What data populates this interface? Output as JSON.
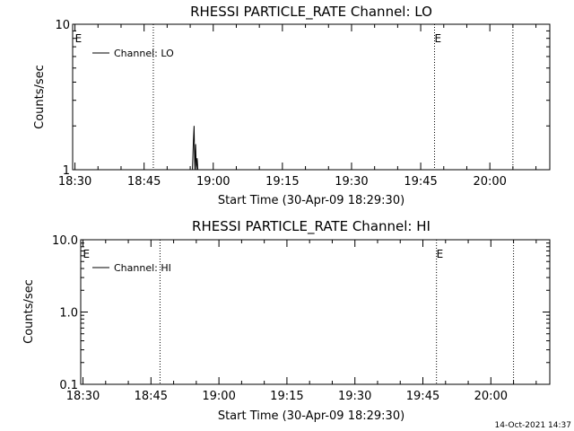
{
  "chart_data": [
    {
      "type": "line",
      "title": "RHESSI PARTICLE_RATE Channel: LO",
      "xlabel": "Start Time (30-Apr-09 18:29:30)",
      "ylabel": "Counts/sec",
      "y_scale": "log",
      "ylim": [
        1,
        10
      ],
      "y_ticks": [
        1,
        10
      ],
      "y_tick_labels": [
        "1",
        "10"
      ],
      "x_tick_labels": [
        "18:30",
        "18:45",
        "19:00",
        "19:15",
        "19:30",
        "19:45",
        "20:00"
      ],
      "series": [
        {
          "name": "Channel: LO",
          "x": [
            "18:55:30",
            "18:55:40",
            "18:55:50",
            "18:56:00",
            "18:56:10",
            "18:56:20",
            "18:56:30",
            "18:56:40"
          ],
          "y": [
            1,
            1.5,
            2.0,
            1.0,
            1.5,
            1.0,
            1.2,
            1.0
          ]
        }
      ],
      "vlines": [
        "18:47",
        "19:48",
        "20:05"
      ],
      "flags": [
        {
          "x": "18:30",
          "label": "E"
        },
        {
          "x": "19:48",
          "label": "E"
        }
      ],
      "legend_position": "top-left",
      "grid": false
    },
    {
      "type": "line",
      "title": "RHESSI PARTICLE_RATE Channel: HI",
      "xlabel": "Start Time (30-Apr-09 18:29:30)",
      "ylabel": "Counts/sec",
      "y_scale": "log",
      "ylim": [
        0.1,
        10
      ],
      "y_ticks": [
        0.1,
        1,
        10
      ],
      "y_tick_labels": [
        "0.1",
        "1.0",
        "10.0"
      ],
      "x_tick_labels": [
        "18:30",
        "18:45",
        "19:00",
        "19:15",
        "19:30",
        "19:45",
        "20:00"
      ],
      "series": [
        {
          "name": "Channel: HI",
          "x": [],
          "y": []
        }
      ],
      "vlines": [
        "18:47",
        "19:48",
        "20:05"
      ],
      "flags": [
        {
          "x": "18:30",
          "label": "E"
        },
        {
          "x": "19:48",
          "label": "E"
        }
      ],
      "legend_position": "top-left",
      "grid": false
    }
  ],
  "footer": {
    "timestamp": "14-Oct-2021 14:37"
  }
}
